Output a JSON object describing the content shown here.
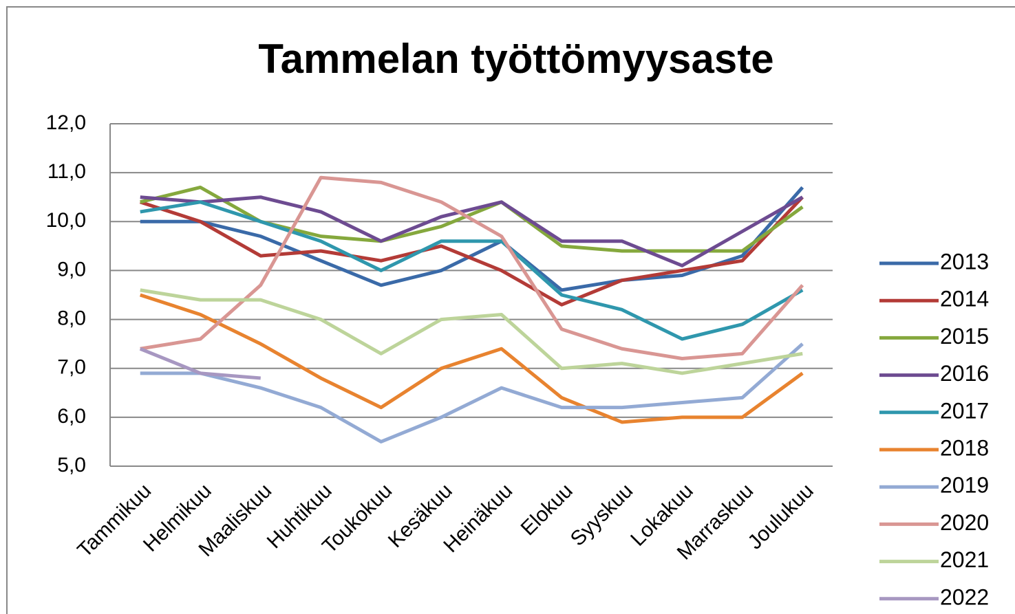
{
  "chart_data": {
    "type": "line",
    "title": "Tammelan työttömyysaste",
    "categories": [
      "Tammikuu",
      "Helmikuu",
      "Maaliskuu",
      "Huhtikuu",
      "Toukokuu",
      "Kesäkuu",
      "Heinäkuu",
      "Elokuu",
      "Syyskuu",
      "Lokakuu",
      "Marraskuu",
      "Joulukuu"
    ],
    "ylim": [
      5,
      12
    ],
    "yticks": [
      {
        "value": 5,
        "label": "5,0"
      },
      {
        "value": 6,
        "label": "6,0"
      },
      {
        "value": 7,
        "label": "7,0"
      },
      {
        "value": 8,
        "label": "8,0"
      },
      {
        "value": 9,
        "label": "9,0"
      },
      {
        "value": 10,
        "label": "10,0"
      },
      {
        "value": 11,
        "label": "11,0"
      },
      {
        "value": 12,
        "label": "12,0"
      }
    ],
    "grid": true,
    "legend": "right",
    "series": [
      {
        "name": "2013",
        "color": "#3a6aa8",
        "values": [
          10.0,
          10.0,
          9.7,
          9.2,
          8.7,
          9.0,
          9.6,
          8.6,
          8.8,
          8.9,
          9.3,
          10.7
        ]
      },
      {
        "name": "2014",
        "color": "#b33b37",
        "values": [
          10.4,
          10.0,
          9.3,
          9.4,
          9.2,
          9.5,
          9.0,
          8.3,
          8.8,
          9.0,
          9.2,
          10.5
        ]
      },
      {
        "name": "2015",
        "color": "#85a83d",
        "values": [
          10.4,
          10.7,
          10.0,
          9.7,
          9.6,
          9.9,
          10.4,
          9.5,
          9.4,
          9.4,
          9.4,
          10.3
        ]
      },
      {
        "name": "2016",
        "color": "#6d4b91",
        "values": [
          10.5,
          10.4,
          10.5,
          10.2,
          9.6,
          10.1,
          10.4,
          9.6,
          9.6,
          9.1,
          9.8,
          10.5
        ]
      },
      {
        "name": "2017",
        "color": "#2f97ad",
        "values": [
          10.2,
          10.4,
          10.0,
          9.6,
          9.0,
          9.6,
          9.6,
          8.5,
          8.2,
          7.6,
          7.9,
          8.6
        ]
      },
      {
        "name": "2018",
        "color": "#e8832f",
        "values": [
          8.5,
          8.1,
          7.5,
          6.8,
          6.2,
          7.0,
          7.4,
          6.4,
          5.9,
          6.0,
          6.0,
          6.9
        ]
      },
      {
        "name": "2019",
        "color": "#93aad4",
        "values": [
          6.9,
          6.9,
          6.6,
          6.2,
          5.5,
          6.0,
          6.6,
          6.2,
          6.2,
          6.3,
          6.4,
          7.5
        ]
      },
      {
        "name": "2020",
        "color": "#d99693",
        "values": [
          7.4,
          7.6,
          8.7,
          10.9,
          10.8,
          10.4,
          9.7,
          7.8,
          7.4,
          7.2,
          7.3,
          8.7
        ]
      },
      {
        "name": "2021",
        "color": "#bdd49a",
        "values": [
          8.6,
          8.4,
          8.4,
          8.0,
          7.3,
          8.0,
          8.1,
          7.0,
          7.1,
          6.9,
          7.1,
          7.3
        ]
      },
      {
        "name": "2022",
        "color": "#a797c1",
        "values": [
          7.4,
          6.9,
          6.8,
          null,
          null,
          null,
          null,
          null,
          null,
          null,
          null,
          null
        ]
      }
    ]
  }
}
